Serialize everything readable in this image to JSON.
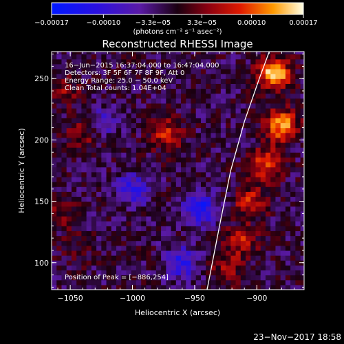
{
  "chart_data": {
    "type": "heatmap",
    "title": "Reconstructed RHESSI Image",
    "xlabel": "Heliocentric X (arcsec)",
    "ylabel": "Heliocentric Y (arcsec)",
    "xlim": [
      -1065,
      -862
    ],
    "ylim": [
      78,
      272
    ],
    "x_ticks": [
      -1050,
      -1000,
      -950,
      -900
    ],
    "y_ticks": [
      100,
      150,
      200,
      250
    ],
    "x_tick_labels": [
      "−1050",
      "−1000",
      "−950",
      "−900"
    ],
    "y_tick_labels": [
      "100",
      "150",
      "200",
      "250"
    ],
    "colorbar": {
      "min": -0.00017,
      "max": 0.00017,
      "ticks": [
        -0.00017,
        -0.0001,
        -3.3e-05,
        3.3e-05,
        0.0001,
        0.00017
      ],
      "tick_labels": [
        "−0.00017",
        "−0.00010",
        "−3.3e−05",
        "3.3e−05",
        "0.00010",
        "0.00017"
      ],
      "unit_label": "(photons cm⁻² s⁻¹ asec⁻²)"
    },
    "annotations": [
      "16−Jun−2015 16:37:04.000 to 16:47:04.000",
      "Detectors: 3F 5F 6F 7F 8F 9F, Att 0",
      "Energy Range: 25.0 − 50.0 keV",
      "Clean    Total counts: 1.04E+04"
    ],
    "peak_label": "Position of Peak = [−886,254]",
    "peak": [
      -886,
      254
    ],
    "limb_curve": [
      [
        -940,
        78
      ],
      [
        -930,
        130
      ],
      [
        -921,
        175
      ],
      [
        -910,
        215
      ],
      [
        -898,
        250
      ],
      [
        -890,
        272
      ]
    ],
    "sources": [
      {
        "x": -886,
        "y": 254,
        "value": 0.00017
      },
      {
        "x": -880,
        "y": 212,
        "value": 0.00015
      },
      {
        "x": -892,
        "y": 180,
        "value": 0.00011
      },
      {
        "x": -905,
        "y": 150,
        "value": 9e-05
      },
      {
        "x": -912,
        "y": 118,
        "value": 8e-05
      },
      {
        "x": -925,
        "y": 95,
        "value": 6e-05
      },
      {
        "x": -973,
        "y": 205,
        "value": 9e-05
      },
      {
        "x": -1040,
        "y": 205,
        "value": 6e-05
      },
      {
        "x": -1055,
        "y": 240,
        "value": 5e-05
      },
      {
        "x": -1058,
        "y": 140,
        "value": 4e-05
      },
      {
        "x": -1045,
        "y": 110,
        "value": 3e-05
      },
      {
        "x": -945,
        "y": 145,
        "value": -0.00012
      },
      {
        "x": -1000,
        "y": 160,
        "value": -9e-05
      },
      {
        "x": -1025,
        "y": 215,
        "value": -6e-05
      },
      {
        "x": -960,
        "y": 100,
        "value": -0.0001
      }
    ]
  },
  "footer": {
    "date_stamp": "23−Nov−2017 18:58"
  }
}
